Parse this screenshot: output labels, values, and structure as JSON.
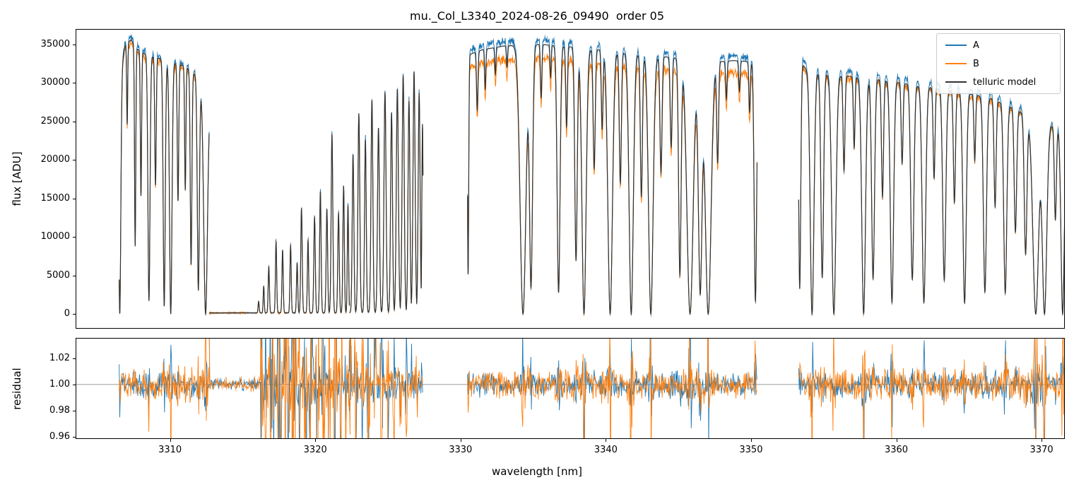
{
  "figure": {
    "title": "mu._Col_L3340_2024-08-26_09490  order 05",
    "background": "#ffffff"
  },
  "legend": {
    "items": [
      {
        "label": "A",
        "color": "#1f77b4"
      },
      {
        "label": "B",
        "color": "#ff7f0e"
      },
      {
        "label": "telluric model",
        "color": "#333333"
      }
    ]
  },
  "chart_data": {
    "type": "line",
    "title": "mu._Col_L3340_2024-08-26_09490  order 05",
    "x_axis": {
      "label": "wavelength [nm]",
      "range": [
        3303.5,
        3371.6
      ],
      "ticks": [
        3310,
        3320,
        3330,
        3340,
        3350,
        3360,
        3370
      ]
    },
    "panels": [
      {
        "id": "flux",
        "ylabel": "flux [ADU]",
        "ylim": [
          -1900,
          37000
        ],
        "yticks": [
          0,
          5000,
          10000,
          15000,
          20000,
          25000,
          30000,
          35000
        ]
      },
      {
        "id": "residual",
        "ylabel": "residual",
        "ylim": [
          0.9585,
          1.0355
        ],
        "yticks": [
          0.96,
          0.98,
          1.0,
          1.02
        ],
        "ytick_labels": [
          "0.96",
          "0.98",
          "1.00",
          "1.02"
        ],
        "hline": 1.0
      }
    ],
    "series": [
      {
        "name": "A",
        "color": "#1f77b4",
        "role": "observed"
      },
      {
        "name": "B",
        "color": "#ff7f0e",
        "role": "observed"
      },
      {
        "name": "telluric model",
        "color": "#333333",
        "role": "model"
      }
    ],
    "noise": {
      "flux_A": [
        100,
        0.011
      ],
      "flux_B": [
        130,
        0.016
      ],
      "residual_coeff": 0.011,
      "residual_ref_flux": 33000,
      "residual_min_flux": 350,
      "residual_B_factor": 1.2,
      "quiet_region": [
        3312.7,
        3316.25
      ],
      "quiet_amp": 0.005
    },
    "segments": [
      {
        "id": "s1",
        "kind": "absorption",
        "x": [
          3306.5,
          3312.7
        ],
        "scale_A": 1.012,
        "scale_B": 0.988,
        "continuum": [
          [
            3306.5,
            30000
          ],
          [
            3306.9,
            34800
          ],
          [
            3307.3,
            35600
          ],
          [
            3307.8,
            34300
          ],
          [
            3308.4,
            33600
          ],
          [
            3309.2,
            33200
          ],
          [
            3310.0,
            32800
          ],
          [
            3310.8,
            32300
          ],
          [
            3311.5,
            31600
          ],
          [
            3312.0,
            30300
          ],
          [
            3312.7,
            28000
          ]
        ],
        "lines": [
          [
            3306.54,
            1.0,
            0.1
          ],
          [
            3307.05,
            0.3,
            0.05
          ],
          [
            3307.6,
            0.75,
            0.06
          ],
          [
            3308.0,
            0.55,
            0.06
          ],
          [
            3308.55,
            0.95,
            0.1
          ],
          [
            3309.0,
            0.5,
            0.07
          ],
          [
            3309.6,
            0.97,
            0.1
          ],
          [
            3310.05,
            1.0,
            0.12
          ],
          [
            3310.55,
            0.55,
            0.07
          ],
          [
            3311.05,
            0.5,
            0.06
          ],
          [
            3311.45,
            0.8,
            0.08
          ],
          [
            3311.95,
            0.9,
            0.1
          ],
          [
            3312.45,
            1.0,
            0.18
          ]
        ]
      },
      {
        "id": "s2",
        "kind": "comb",
        "x": [
          3312.7,
          3322.35
        ],
        "scale_A": 1.012,
        "scale_B": 0.988,
        "base": 150,
        "peaks": [
          [
            3316.1,
            1500,
            0.05
          ],
          [
            3316.45,
            3500,
            0.05
          ],
          [
            3316.8,
            6000,
            0.06
          ],
          [
            3317.3,
            9300,
            0.06
          ],
          [
            3317.75,
            8200,
            0.06
          ],
          [
            3318.3,
            8800,
            0.06
          ],
          [
            3318.75,
            6500,
            0.06
          ],
          [
            3319.05,
            13600,
            0.07
          ],
          [
            3319.5,
            9500,
            0.06
          ],
          [
            3319.95,
            12500,
            0.07
          ],
          [
            3320.35,
            15800,
            0.07
          ],
          [
            3320.8,
            13500,
            0.07
          ],
          [
            3321.15,
            23200,
            0.08
          ],
          [
            3321.6,
            13000,
            0.07
          ],
          [
            3321.95,
            16500,
            0.07
          ],
          [
            3322.25,
            14000,
            0.06
          ]
        ]
      },
      {
        "id": "s3",
        "kind": "comb",
        "x": [
          3322.35,
          3327.42
        ],
        "scale_A": 1.012,
        "scale_B": 0.988,
        "base": 200,
        "peaks": [
          [
            3322.6,
            20500,
            0.08
          ],
          [
            3323.0,
            25800,
            0.09
          ],
          [
            3323.45,
            22500,
            0.08
          ],
          [
            3323.9,
            27600,
            0.09
          ],
          [
            3324.35,
            24000,
            0.09
          ],
          [
            3324.8,
            28600,
            0.1
          ],
          [
            3325.25,
            26000,
            0.09
          ],
          [
            3325.65,
            29000,
            0.1
          ],
          [
            3326.05,
            30800,
            0.1
          ],
          [
            3326.45,
            27500,
            0.09
          ],
          [
            3326.8,
            31300,
            0.1
          ],
          [
            3327.15,
            28500,
            0.09
          ],
          [
            3327.38,
            24500,
            0.06
          ]
        ]
      },
      {
        "id": "s4",
        "kind": "absorption",
        "x": [
          3330.48,
          3350.42
        ],
        "scale_A": 1.018,
        "scale_B": 0.95,
        "continuum": [
          [
            3330.48,
            33600
          ],
          [
            3331.5,
            34300
          ],
          [
            3333,
            34800
          ],
          [
            3335.5,
            35000
          ],
          [
            3337.5,
            34700
          ],
          [
            3339.5,
            34300
          ],
          [
            3341.5,
            33900
          ],
          [
            3343.5,
            33500
          ],
          [
            3345.5,
            33100
          ],
          [
            3347.5,
            32700
          ],
          [
            3348.8,
            32900
          ],
          [
            3350.42,
            32700
          ]
        ],
        "lines": [
          [
            3330.52,
            0.85,
            0.06
          ],
          [
            3331.15,
            0.22,
            0.07
          ],
          [
            3331.7,
            0.15,
            0.06
          ],
          [
            3332.4,
            0.1,
            0.06
          ],
          [
            3333.2,
            0.08,
            0.06
          ],
          [
            3334.3,
            1.0,
            0.28
          ],
          [
            3334.85,
            0.9,
            0.15
          ],
          [
            3335.55,
            0.2,
            0.07
          ],
          [
            3336.2,
            0.12,
            0.06
          ],
          [
            3336.75,
            0.92,
            0.14
          ],
          [
            3337.3,
            0.3,
            0.08
          ],
          [
            3337.95,
            0.8,
            0.12
          ],
          [
            3338.5,
            1.0,
            0.2
          ],
          [
            3339.2,
            0.45,
            0.1
          ],
          [
            3339.75,
            0.3,
            0.08
          ],
          [
            3340.3,
            1.0,
            0.22
          ],
          [
            3341.0,
            0.5,
            0.1
          ],
          [
            3341.75,
            1.0,
            0.2
          ],
          [
            3342.45,
            0.55,
            0.1
          ],
          [
            3343.1,
            1.0,
            0.22
          ],
          [
            3343.8,
            0.45,
            0.1
          ],
          [
            3344.5,
            0.35,
            0.09
          ],
          [
            3345.1,
            0.85,
            0.12
          ],
          [
            3345.8,
            1.0,
            0.3
          ],
          [
            3346.5,
            0.92,
            0.18
          ],
          [
            3347.05,
            1.0,
            0.28
          ],
          [
            3347.7,
            0.4,
            0.09
          ],
          [
            3348.3,
            0.15,
            0.07
          ],
          [
            3349.2,
            0.12,
            0.07
          ],
          [
            3349.9,
            0.2,
            0.07
          ],
          [
            3350.3,
            0.95,
            0.12
          ]
        ]
      },
      {
        "id": "s5",
        "kind": "absorption",
        "x": [
          3353.28,
          3372.0
        ],
        "scale_A": 1.022,
        "scale_B": 0.99,
        "continuum": [
          [
            3353.28,
            33000
          ],
          [
            3353.8,
            31800
          ],
          [
            3355,
            31200
          ],
          [
            3357,
            30800
          ],
          [
            3359,
            30400
          ],
          [
            3361,
            29800
          ],
          [
            3363,
            29200
          ],
          [
            3365,
            28600
          ],
          [
            3366.5,
            28000
          ],
          [
            3368,
            26800
          ],
          [
            3369.3,
            25400
          ],
          [
            3370.5,
            24600
          ],
          [
            3372.0,
            23800
          ]
        ],
        "lines": [
          [
            3353.35,
            0.9,
            0.1
          ],
          [
            3354.2,
            1.0,
            0.18
          ],
          [
            3354.9,
            0.85,
            0.13
          ],
          [
            3355.7,
            1.0,
            0.2
          ],
          [
            3356.4,
            0.4,
            0.09
          ],
          [
            3357.1,
            0.3,
            0.08
          ],
          [
            3357.75,
            1.0,
            0.18
          ],
          [
            3358.4,
            0.85,
            0.14
          ],
          [
            3359.05,
            0.5,
            0.1
          ],
          [
            3359.7,
            0.95,
            0.16
          ],
          [
            3360.4,
            0.35,
            0.09
          ],
          [
            3361.1,
            0.85,
            0.15
          ],
          [
            3361.9,
            0.95,
            0.17
          ],
          [
            3362.6,
            0.4,
            0.09
          ],
          [
            3363.3,
            0.85,
            0.15
          ],
          [
            3364.0,
            0.5,
            0.1
          ],
          [
            3364.7,
            0.95,
            0.16
          ],
          [
            3365.4,
            0.3,
            0.08
          ],
          [
            3366.1,
            0.9,
            0.15
          ],
          [
            3366.8,
            0.5,
            0.1
          ],
          [
            3367.5,
            0.9,
            0.15
          ],
          [
            3368.2,
            0.6,
            0.12
          ],
          [
            3368.9,
            0.7,
            0.13
          ],
          [
            3369.6,
            1.0,
            0.28
          ],
          [
            3370.2,
            1.0,
            0.22
          ],
          [
            3370.95,
            0.5,
            0.1
          ],
          [
            3371.45,
            1.0,
            0.16
          ]
        ]
      }
    ]
  }
}
